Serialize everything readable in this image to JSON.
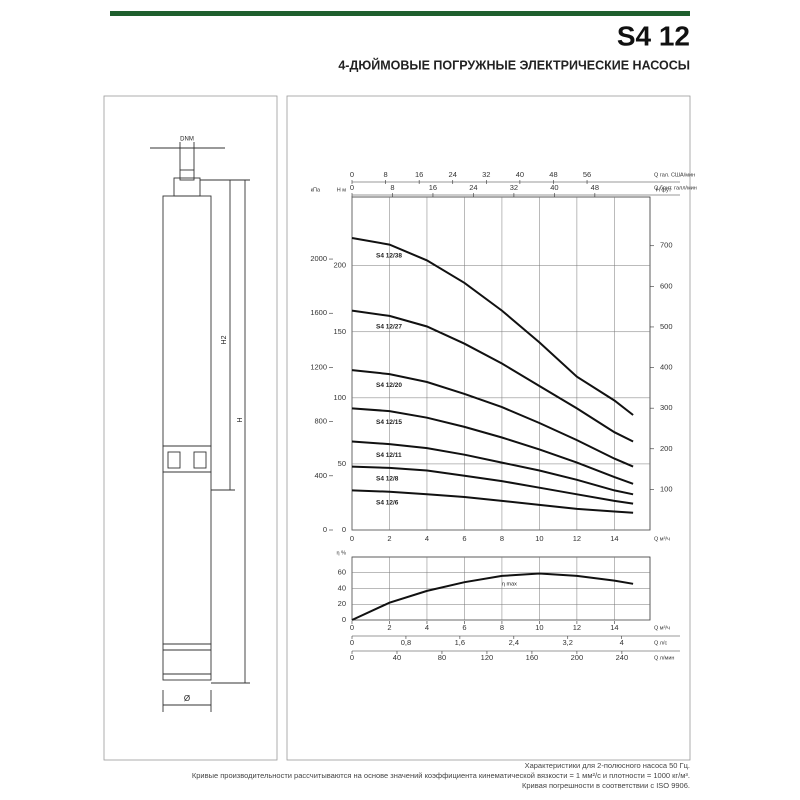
{
  "header": {
    "title": "S4 12",
    "subtitle": "4-ДЮЙМОВЫЕ ПОГРУЖНЫЕ ЭЛЕКТРИЧЕСКИЕ НАСОСЫ"
  },
  "drawing": {
    "dnm": "DNM",
    "h2": "H2",
    "h": "H",
    "diameter": "Ø"
  },
  "chart_data": {
    "type": "line",
    "x_label": "Q м³/ч",
    "x": [
      0,
      2,
      4,
      6,
      8,
      10,
      12,
      14,
      15
    ],
    "xlim": [
      0,
      15.9
    ],
    "xticks": [
      0,
      2,
      4,
      6,
      8,
      10,
      12,
      14
    ],
    "grid": true,
    "top_axes": [
      {
        "label": "Q гал. США/мин",
        "xlim": [
          0,
          71
        ],
        "xticks": [
          0,
          8,
          16,
          24,
          32,
          40,
          48,
          56
        ]
      },
      {
        "label": "Q брит. галл/мин",
        "xlim": [
          0,
          58.9
        ],
        "xticks": [
          0,
          8,
          16,
          24,
          32,
          40,
          48
        ]
      }
    ],
    "y_axes": [
      {
        "label": "H м",
        "ylim": [
          0,
          252
        ],
        "yticks": [
          0,
          50,
          100,
          150,
          200
        ]
      },
      {
        "label": "кПа",
        "ylim": [
          0,
          2458
        ],
        "yticks": [
          0,
          400,
          800,
          1200,
          1600,
          2000
        ]
      },
      {
        "label": "H фут",
        "ylim": [
          0,
          820
        ],
        "yticks": [
          100,
          200,
          300,
          400,
          500,
          600,
          700
        ]
      }
    ],
    "series": [
      {
        "name": "S4 12/38",
        "color": "#111111",
        "values": [
          221,
          216,
          204,
          187,
          166,
          142,
          116,
          98,
          87
        ]
      },
      {
        "name": "S4 12/27",
        "color": "#111111",
        "values": [
          166,
          162,
          154,
          141,
          126,
          109,
          92,
          74,
          67
        ]
      },
      {
        "name": "S4 12/20",
        "color": "#111111",
        "values": [
          121,
          118,
          112,
          103,
          93,
          81,
          68,
          54,
          48
        ]
      },
      {
        "name": "S4 12/15",
        "color": "#111111",
        "values": [
          92,
          90,
          85,
          78,
          70,
          61,
          51,
          40,
          35
        ]
      },
      {
        "name": "S4 12/11",
        "color": "#111111",
        "values": [
          67,
          65,
          62,
          57,
          51,
          45,
          38,
          30,
          27
        ]
      },
      {
        "name": "S4 12/8",
        "color": "#111111",
        "values": [
          48,
          47,
          45,
          41,
          37,
          32,
          27,
          22,
          20
        ]
      },
      {
        "name": "S4 12/6",
        "color": "#111111",
        "values": [
          30,
          29,
          27,
          25,
          22,
          19,
          16,
          14,
          13
        ]
      }
    ],
    "efficiency": {
      "label": "η %",
      "ylim": [
        0,
        80
      ],
      "yticks": [
        0,
        20,
        40,
        60
      ],
      "values": [
        0,
        22,
        37,
        48,
        56,
        59,
        56,
        50,
        46
      ],
      "annotation": "η max"
    },
    "bottom_axes": [
      {
        "label": "Q м³/ч",
        "xticks": [
          0,
          2,
          4,
          6,
          8,
          10,
          12,
          14
        ]
      },
      {
        "label": "Q л/с",
        "xlim": [
          0,
          4.42
        ],
        "xticks": [
          0,
          {
            "value": 0.8,
            "label": "0,8"
          },
          {
            "value": 1.6,
            "label": "1,6"
          },
          {
            "value": 2.4,
            "label": "2,4"
          },
          {
            "value": 3.2,
            "label": "3,2"
          },
          4
        ]
      },
      {
        "label": "Q л/мин",
        "xlim": [
          0,
          265
        ],
        "xticks": [
          0,
          40,
          80,
          120,
          160,
          200,
          240
        ]
      }
    ]
  },
  "footer": [
    "Характеристики для 2-полюсного насоса 50 Гц.",
    "Кривые производительности рассчитываются на основе значений коэффициента кинематической вязкости = 1 мм²/с и плотности = 1000 кг/м³.",
    "Кривая погрешности в соответствии с ISO 9906."
  ]
}
